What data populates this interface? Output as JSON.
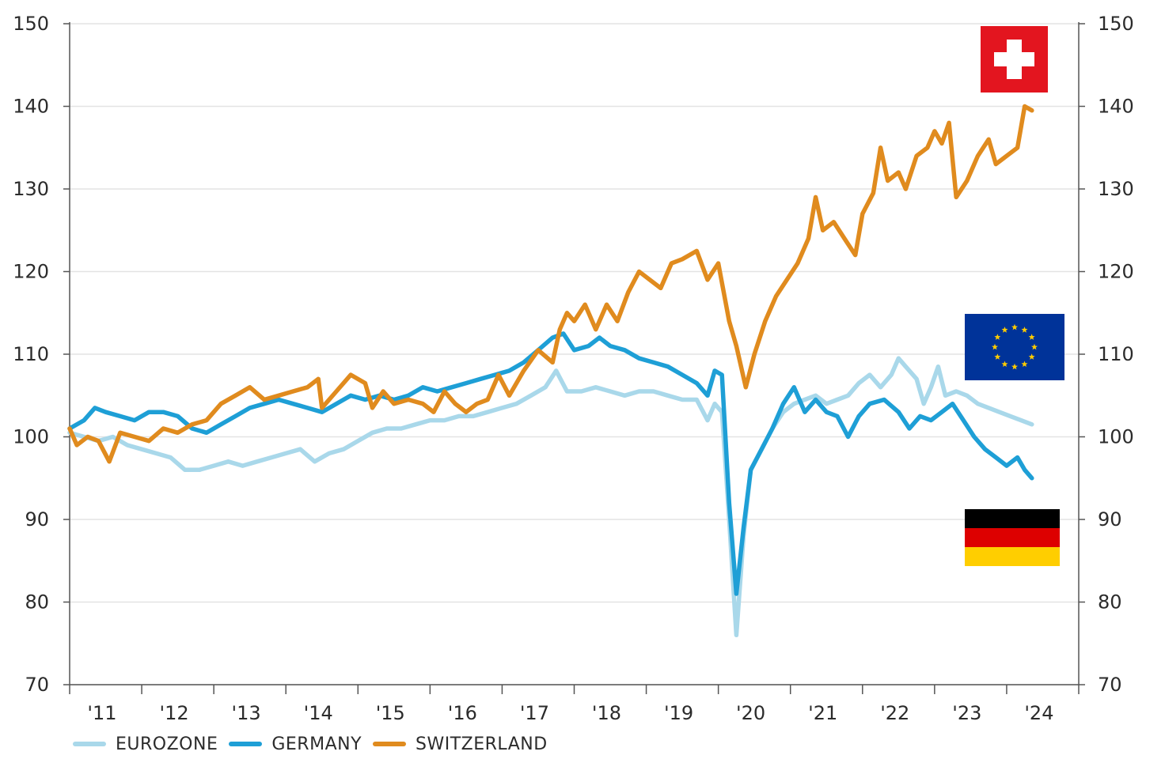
{
  "legend": [
    {
      "label": "EUROZONE",
      "color": "#a9d8ea"
    },
    {
      "label": "GERMANY",
      "color": "#1e9fd6"
    },
    {
      "label": "SWITZERLAND",
      "color": "#e08b1e"
    }
  ],
  "flags": {
    "switzerland": {
      "icon": "swiss-flag-icon",
      "colors": [
        "#e3151f",
        "#ffffff"
      ]
    },
    "eurozone": {
      "icon": "eu-flag-icon",
      "colors": [
        "#003399",
        "#ffcc00"
      ]
    },
    "germany": {
      "icon": "german-flag-icon",
      "colors": [
        "#000000",
        "#dd0000",
        "#ffce00"
      ]
    }
  },
  "chart_data": {
    "type": "line",
    "title": "",
    "xlabel": "",
    "ylabel": "",
    "x_ticks": [
      "'11",
      "'12",
      "'13",
      "'14",
      "'15",
      "'16",
      "'17",
      "'18",
      "'19",
      "'20",
      "'21",
      "'22",
      "'23",
      "'24"
    ],
    "xlim": [
      2011.0,
      2025.0
    ],
    "ylim": [
      70,
      150
    ],
    "y_ticks": [
      70,
      80,
      90,
      100,
      110,
      120,
      130,
      140,
      150
    ],
    "y_axis_right_mirrored": true,
    "grid": "horizontal",
    "legend_position": "bottom-left",
    "series": [
      {
        "name": "SWITZERLAND",
        "color": "#e08b1e",
        "points": [
          [
            2011.0,
            101
          ],
          [
            2011.1,
            99
          ],
          [
            2011.25,
            100
          ],
          [
            2011.4,
            99.5
          ],
          [
            2011.55,
            97
          ],
          [
            2011.7,
            100.5
          ],
          [
            2011.9,
            100
          ],
          [
            2012.1,
            99.5
          ],
          [
            2012.3,
            101
          ],
          [
            2012.5,
            100.5
          ],
          [
            2012.7,
            101.5
          ],
          [
            2012.9,
            102
          ],
          [
            2013.1,
            104
          ],
          [
            2013.3,
            105
          ],
          [
            2013.5,
            106
          ],
          [
            2013.7,
            104.5
          ],
          [
            2013.9,
            105
          ],
          [
            2014.1,
            105.5
          ],
          [
            2014.3,
            106
          ],
          [
            2014.45,
            107
          ],
          [
            2014.5,
            103.5
          ],
          [
            2014.7,
            105.5
          ],
          [
            2014.9,
            107.5
          ],
          [
            2015.1,
            106.5
          ],
          [
            2015.2,
            103.5
          ],
          [
            2015.35,
            105.5
          ],
          [
            2015.5,
            104
          ],
          [
            2015.7,
            104.5
          ],
          [
            2015.9,
            104
          ],
          [
            2016.05,
            103
          ],
          [
            2016.2,
            105.5
          ],
          [
            2016.35,
            104
          ],
          [
            2016.5,
            103
          ],
          [
            2016.65,
            104
          ],
          [
            2016.8,
            104.5
          ],
          [
            2016.95,
            107.5
          ],
          [
            2017.1,
            105
          ],
          [
            2017.3,
            108
          ],
          [
            2017.5,
            110.5
          ],
          [
            2017.7,
            109
          ],
          [
            2017.8,
            113
          ],
          [
            2017.9,
            115
          ],
          [
            2018.0,
            114
          ],
          [
            2018.15,
            116
          ],
          [
            2018.3,
            113
          ],
          [
            2018.45,
            116
          ],
          [
            2018.6,
            114
          ],
          [
            2018.75,
            117.5
          ],
          [
            2018.9,
            120
          ],
          [
            2019.05,
            119
          ],
          [
            2019.2,
            118
          ],
          [
            2019.35,
            121
          ],
          [
            2019.5,
            121.5
          ],
          [
            2019.7,
            122.5
          ],
          [
            2019.85,
            119
          ],
          [
            2020.0,
            121
          ],
          [
            2020.15,
            114
          ],
          [
            2020.25,
            111
          ],
          [
            2020.38,
            106
          ],
          [
            2020.5,
            110
          ],
          [
            2020.65,
            114
          ],
          [
            2020.8,
            117
          ],
          [
            2020.95,
            119
          ],
          [
            2021.1,
            121
          ],
          [
            2021.25,
            124
          ],
          [
            2021.35,
            129
          ],
          [
            2021.45,
            125
          ],
          [
            2021.6,
            126
          ],
          [
            2021.75,
            124
          ],
          [
            2021.9,
            122
          ],
          [
            2022.0,
            127
          ],
          [
            2022.15,
            129.5
          ],
          [
            2022.25,
            135
          ],
          [
            2022.35,
            131
          ],
          [
            2022.5,
            132
          ],
          [
            2022.6,
            130
          ],
          [
            2022.75,
            134
          ],
          [
            2022.9,
            135
          ],
          [
            2023.0,
            137
          ],
          [
            2023.1,
            135.5
          ],
          [
            2023.2,
            138
          ],
          [
            2023.3,
            129
          ],
          [
            2023.45,
            131
          ],
          [
            2023.6,
            134
          ],
          [
            2023.75,
            136
          ],
          [
            2023.85,
            133
          ],
          [
            2024.0,
            134
          ],
          [
            2024.15,
            135
          ],
          [
            2024.25,
            140
          ],
          [
            2024.35,
            139.5
          ]
        ]
      },
      {
        "name": "GERMANY",
        "color": "#1e9fd6",
        "points": [
          [
            2011.0,
            101
          ],
          [
            2011.2,
            102
          ],
          [
            2011.35,
            103.5
          ],
          [
            2011.5,
            103
          ],
          [
            2011.7,
            102.5
          ],
          [
            2011.9,
            102
          ],
          [
            2012.1,
            103
          ],
          [
            2012.3,
            103
          ],
          [
            2012.5,
            102.5
          ],
          [
            2012.7,
            101
          ],
          [
            2012.9,
            100.5
          ],
          [
            2013.1,
            101.5
          ],
          [
            2013.3,
            102.5
          ],
          [
            2013.5,
            103.5
          ],
          [
            2013.7,
            104
          ],
          [
            2013.9,
            104.5
          ],
          [
            2014.1,
            104
          ],
          [
            2014.3,
            103.5
          ],
          [
            2014.5,
            103
          ],
          [
            2014.7,
            104
          ],
          [
            2014.9,
            105
          ],
          [
            2015.1,
            104.5
          ],
          [
            2015.3,
            105
          ],
          [
            2015.5,
            104.5
          ],
          [
            2015.7,
            105
          ],
          [
            2015.9,
            106
          ],
          [
            2016.1,
            105.5
          ],
          [
            2016.3,
            106
          ],
          [
            2016.5,
            106.5
          ],
          [
            2016.7,
            107
          ],
          [
            2016.9,
            107.5
          ],
          [
            2017.1,
            108
          ],
          [
            2017.3,
            109
          ],
          [
            2017.5,
            110.5
          ],
          [
            2017.7,
            112
          ],
          [
            2017.85,
            112.5
          ],
          [
            2018.0,
            110.5
          ],
          [
            2018.2,
            111
          ],
          [
            2018.35,
            112
          ],
          [
            2018.5,
            111
          ],
          [
            2018.7,
            110.5
          ],
          [
            2018.9,
            109.5
          ],
          [
            2019.1,
            109
          ],
          [
            2019.3,
            108.5
          ],
          [
            2019.5,
            107.5
          ],
          [
            2019.7,
            106.5
          ],
          [
            2019.85,
            105
          ],
          [
            2019.95,
            108
          ],
          [
            2020.05,
            107.5
          ],
          [
            2020.15,
            92
          ],
          [
            2020.25,
            81
          ],
          [
            2020.35,
            89
          ],
          [
            2020.45,
            96
          ],
          [
            2020.6,
            98.5
          ],
          [
            2020.75,
            101
          ],
          [
            2020.9,
            104
          ],
          [
            2021.05,
            106
          ],
          [
            2021.2,
            103
          ],
          [
            2021.35,
            104.5
          ],
          [
            2021.5,
            103
          ],
          [
            2021.65,
            102.5
          ],
          [
            2021.8,
            100
          ],
          [
            2021.95,
            102.5
          ],
          [
            2022.1,
            104
          ],
          [
            2022.3,
            104.5
          ],
          [
            2022.5,
            103
          ],
          [
            2022.65,
            101
          ],
          [
            2022.8,
            102.5
          ],
          [
            2022.95,
            102
          ],
          [
            2023.1,
            103
          ],
          [
            2023.25,
            104
          ],
          [
            2023.4,
            102
          ],
          [
            2023.55,
            100
          ],
          [
            2023.7,
            98.5
          ],
          [
            2023.85,
            97.5
          ],
          [
            2024.0,
            96.5
          ],
          [
            2024.15,
            97.5
          ],
          [
            2024.25,
            96
          ],
          [
            2024.35,
            95
          ]
        ]
      },
      {
        "name": "EUROZONE",
        "color": "#a9d8ea",
        "points": [
          [
            2011.0,
            100.5
          ],
          [
            2011.2,
            100
          ],
          [
            2011.4,
            99.5
          ],
          [
            2011.6,
            100
          ],
          [
            2011.8,
            99
          ],
          [
            2012.0,
            98.5
          ],
          [
            2012.2,
            98
          ],
          [
            2012.4,
            97.5
          ],
          [
            2012.6,
            96
          ],
          [
            2012.8,
            96
          ],
          [
            2013.0,
            96.5
          ],
          [
            2013.2,
            97
          ],
          [
            2013.4,
            96.5
          ],
          [
            2013.6,
            97
          ],
          [
            2013.8,
            97.5
          ],
          [
            2014.0,
            98
          ],
          [
            2014.2,
            98.5
          ],
          [
            2014.4,
            97
          ],
          [
            2014.6,
            98
          ],
          [
            2014.8,
            98.5
          ],
          [
            2015.0,
            99.5
          ],
          [
            2015.2,
            100.5
          ],
          [
            2015.4,
            101
          ],
          [
            2015.6,
            101
          ],
          [
            2015.8,
            101.5
          ],
          [
            2016.0,
            102
          ],
          [
            2016.2,
            102
          ],
          [
            2016.4,
            102.5
          ],
          [
            2016.6,
            102.5
          ],
          [
            2016.8,
            103
          ],
          [
            2017.0,
            103.5
          ],
          [
            2017.2,
            104
          ],
          [
            2017.4,
            105
          ],
          [
            2017.6,
            106
          ],
          [
            2017.75,
            108
          ],
          [
            2017.9,
            105.5
          ],
          [
            2018.1,
            105.5
          ],
          [
            2018.3,
            106
          ],
          [
            2018.5,
            105.5
          ],
          [
            2018.7,
            105
          ],
          [
            2018.9,
            105.5
          ],
          [
            2019.1,
            105.5
          ],
          [
            2019.3,
            105
          ],
          [
            2019.5,
            104.5
          ],
          [
            2019.7,
            104.5
          ],
          [
            2019.85,
            102
          ],
          [
            2019.95,
            104
          ],
          [
            2020.05,
            103
          ],
          [
            2020.15,
            90
          ],
          [
            2020.25,
            76
          ],
          [
            2020.35,
            88
          ],
          [
            2020.45,
            96
          ],
          [
            2020.6,
            98.5
          ],
          [
            2020.75,
            101
          ],
          [
            2020.9,
            103
          ],
          [
            2021.05,
            104
          ],
          [
            2021.2,
            104.5
          ],
          [
            2021.35,
            105
          ],
          [
            2021.5,
            104
          ],
          [
            2021.65,
            104.5
          ],
          [
            2021.8,
            105
          ],
          [
            2021.95,
            106.5
          ],
          [
            2022.1,
            107.5
          ],
          [
            2022.25,
            106
          ],
          [
            2022.4,
            107.5
          ],
          [
            2022.5,
            109.5
          ],
          [
            2022.6,
            108.5
          ],
          [
            2022.75,
            107
          ],
          [
            2022.85,
            104
          ],
          [
            2022.95,
            106
          ],
          [
            2023.05,
            108.5
          ],
          [
            2023.15,
            105
          ],
          [
            2023.3,
            105.5
          ],
          [
            2023.45,
            105
          ],
          [
            2023.6,
            104
          ],
          [
            2023.75,
            103.5
          ],
          [
            2023.9,
            103
          ],
          [
            2024.05,
            102.5
          ],
          [
            2024.2,
            102
          ],
          [
            2024.35,
            101.5
          ]
        ]
      }
    ]
  }
}
